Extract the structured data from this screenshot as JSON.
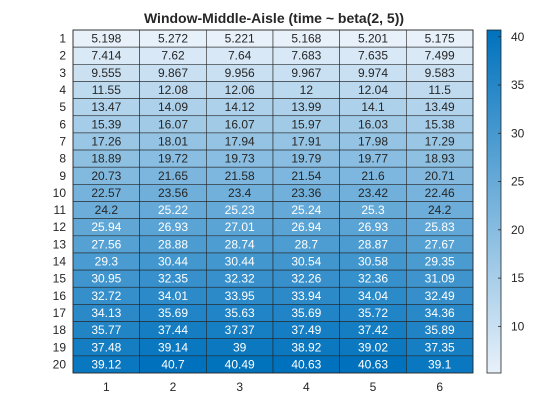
{
  "chart_data": {
    "type": "heatmap",
    "title": "Window-Middle-Aisle (time ~ beta(2, 5))",
    "xlabel": "",
    "ylabel": "",
    "x_categories": [
      "1",
      "2",
      "3",
      "4",
      "5",
      "6"
    ],
    "y_categories": [
      "1",
      "2",
      "3",
      "4",
      "5",
      "6",
      "7",
      "8",
      "9",
      "10",
      "11",
      "12",
      "13",
      "14",
      "15",
      "16",
      "17",
      "18",
      "19",
      "20"
    ],
    "values": [
      [
        5.198,
        5.272,
        5.221,
        5.168,
        5.201,
        5.175
      ],
      [
        7.414,
        7.62,
        7.64,
        7.683,
        7.635,
        7.499
      ],
      [
        9.555,
        9.867,
        9.956,
        9.967,
        9.974,
        9.583
      ],
      [
        11.55,
        12.08,
        12.06,
        12,
        12.04,
        11.5
      ],
      [
        13.47,
        14.09,
        14.12,
        13.99,
        14.1,
        13.49
      ],
      [
        15.39,
        16.07,
        16.07,
        15.97,
        16.03,
        15.38
      ],
      [
        17.26,
        18.01,
        17.94,
        17.91,
        17.98,
        17.29
      ],
      [
        18.89,
        19.72,
        19.73,
        19.79,
        19.77,
        18.93
      ],
      [
        20.73,
        21.65,
        21.58,
        21.54,
        21.6,
        20.71
      ],
      [
        22.57,
        23.56,
        23.4,
        23.36,
        23.42,
        22.46
      ],
      [
        24.2,
        25.22,
        25.23,
        25.24,
        25.3,
        24.2
      ],
      [
        25.94,
        26.93,
        27.01,
        26.94,
        26.93,
        25.83
      ],
      [
        27.56,
        28.88,
        28.74,
        28.7,
        28.87,
        27.67
      ],
      [
        29.3,
        30.44,
        30.44,
        30.54,
        30.58,
        29.35
      ],
      [
        30.95,
        32.35,
        32.32,
        32.26,
        32.36,
        31.09
      ],
      [
        32.72,
        34.01,
        33.95,
        33.94,
        34.04,
        32.49
      ],
      [
        34.13,
        35.69,
        35.63,
        35.69,
        35.72,
        34.36
      ],
      [
        35.77,
        37.44,
        37.37,
        37.49,
        37.42,
        35.89
      ],
      [
        37.48,
        39.14,
        39,
        38.92,
        39.02,
        37.35
      ],
      [
        39.12,
        40.7,
        40.49,
        40.63,
        40.63,
        39.1
      ]
    ],
    "value_labels": [
      [
        "5.198",
        "5.272",
        "5.221",
        "5.168",
        "5.201",
        "5.175"
      ],
      [
        "7.414",
        "7.62",
        "7.64",
        "7.683",
        "7.635",
        "7.499"
      ],
      [
        "9.555",
        "9.867",
        "9.956",
        "9.967",
        "9.974",
        "9.583"
      ],
      [
        "11.55",
        "12.08",
        "12.06",
        "12",
        "12.04",
        "11.5"
      ],
      [
        "13.47",
        "14.09",
        "14.12",
        "13.99",
        "14.1",
        "13.49"
      ],
      [
        "15.39",
        "16.07",
        "16.07",
        "15.97",
        "16.03",
        "15.38"
      ],
      [
        "17.26",
        "18.01",
        "17.94",
        "17.91",
        "17.98",
        "17.29"
      ],
      [
        "18.89",
        "19.72",
        "19.73",
        "19.79",
        "19.77",
        "18.93"
      ],
      [
        "20.73",
        "21.65",
        "21.58",
        "21.54",
        "21.6",
        "20.71"
      ],
      [
        "22.57",
        "23.56",
        "23.4",
        "23.36",
        "23.42",
        "22.46"
      ],
      [
        "24.2",
        "25.22",
        "25.23",
        "25.24",
        "25.3",
        "24.2"
      ],
      [
        "25.94",
        "26.93",
        "27.01",
        "26.94",
        "26.93",
        "25.83"
      ],
      [
        "27.56",
        "28.88",
        "28.74",
        "28.7",
        "28.87",
        "27.67"
      ],
      [
        "29.3",
        "30.44",
        "30.44",
        "30.54",
        "30.58",
        "29.35"
      ],
      [
        "30.95",
        "32.35",
        "32.32",
        "32.26",
        "32.36",
        "31.09"
      ],
      [
        "32.72",
        "34.01",
        "33.95",
        "33.94",
        "34.04",
        "32.49"
      ],
      [
        "34.13",
        "35.69",
        "35.63",
        "35.69",
        "35.72",
        "34.36"
      ],
      [
        "35.77",
        "37.44",
        "37.37",
        "37.49",
        "37.42",
        "35.89"
      ],
      [
        "37.48",
        "39.14",
        "39",
        "38.92",
        "39.02",
        "37.35"
      ],
      [
        "39.12",
        "40.7",
        "40.49",
        "40.63",
        "40.63",
        "39.1"
      ]
    ],
    "color_scale": {
      "min": 5.168,
      "max": 40.7,
      "low_color": "#E8F1FA",
      "high_color": "#0072BD",
      "ticks": [
        10,
        15,
        20,
        25,
        30,
        35,
        40
      ]
    },
    "colorbar": true,
    "grid": true,
    "text_color_dark": "#262626",
    "text_color_light": "#FFFFFF"
  }
}
